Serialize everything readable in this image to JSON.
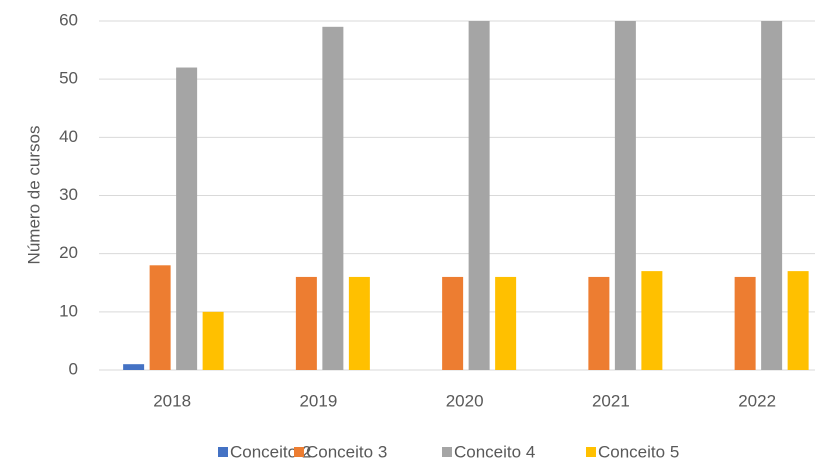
{
  "chart_data": {
    "type": "bar",
    "y_label": "Número de cursos",
    "categories": [
      "2018",
      "2019",
      "2020",
      "2021",
      "2022"
    ],
    "series": [
      {
        "name": "Conceito 2",
        "color": "#4472c4",
        "values": [
          1,
          0,
          0,
          0,
          0
        ]
      },
      {
        "name": "Conceito 3",
        "color": "#ed7d31",
        "values": [
          18,
          16,
          16,
          16,
          16
        ]
      },
      {
        "name": "Conceito 4",
        "color": "#a5a5a5",
        "values": [
          52,
          59,
          60,
          60,
          60
        ]
      },
      {
        "name": "Conceito 5",
        "color": "#ffc000",
        "values": [
          10,
          16,
          16,
          17,
          17
        ]
      }
    ],
    "ylim": [
      0,
      60
    ],
    "yticks": [
      0,
      10,
      20,
      30,
      40,
      50,
      60
    ],
    "grid": true,
    "legend": "bottom"
  }
}
